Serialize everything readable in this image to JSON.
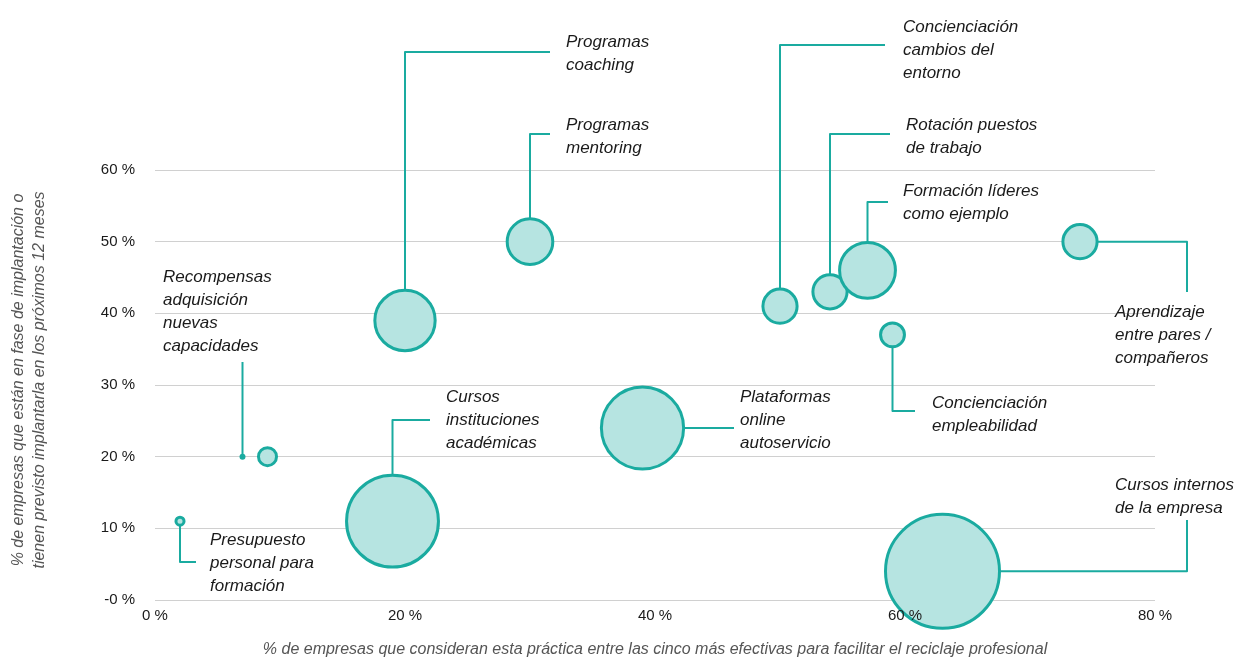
{
  "chart_data": {
    "type": "bubble",
    "xlabel": "% de empresas que consideran esta práctica entre las cinco más efectivas para facilitar el reciclaje profesional",
    "ylabel": "% de empresas que están en fase de implantación o tienen previsto implantarla en los próximos 12 meses",
    "x": [
      20,
      30,
      50,
      54,
      57,
      74,
      59,
      39,
      19,
      9,
      2,
      63
    ],
    "values": [
      39,
      50,
      41,
      43,
      46,
      50,
      37,
      24,
      11,
      20,
      11,
      4
    ],
    "sizes": [
      0.28,
      0.16,
      0.09,
      0.09,
      0.24,
      0.09,
      0.044,
      0.52,
      0.65,
      0.025,
      0.005,
      1
    ],
    "color": "#1aaba0",
    "xlim": [
      0,
      80
    ],
    "xticks": [
      {
        "value": 0,
        "label": "0 %"
      },
      {
        "value": 20,
        "label": "20 %"
      },
      {
        "value": 40,
        "label": "40 %"
      },
      {
        "value": 60,
        "label": "60 %"
      },
      {
        "value": 80,
        "label": "80 %"
      }
    ],
    "ylim": [
      0,
      60
    ],
    "yticks": [
      {
        "value": 0,
        "label": "-0 %"
      },
      {
        "value": 10,
        "label": "10 %"
      },
      {
        "value": 20,
        "label": "20 %"
      },
      {
        "value": 30,
        "label": "30 %"
      },
      {
        "value": 40,
        "label": "40 %"
      },
      {
        "value": 50,
        "label": "50 %"
      },
      {
        "value": 60,
        "label": "60 %"
      }
    ],
    "grid": "y",
    "legend": false,
    "annotations": [
      {
        "text": "Programas coaching",
        "x": 20,
        "y": 39
      },
      {
        "text": "Programas mentoring",
        "x": 30,
        "y": 50
      },
      {
        "text": "Concienciación cambios del entorno",
        "x": 50,
        "y": 41
      },
      {
        "text": "Rotación puestos de trabajo",
        "x": 54,
        "y": 43
      },
      {
        "text": "Formación líderes como ejemplo",
        "x": 57,
        "y": 46
      },
      {
        "text": "Aprendizaje entre pares / compañeros",
        "x": 74,
        "y": 50
      },
      {
        "text": "Concienciación empleabilidad",
        "x": 59,
        "y": 37
      },
      {
        "text": "Plataformas online autoservicio",
        "x": 39,
        "y": 24
      },
      {
        "text": "Cursos instituciones académicas",
        "x": 19,
        "y": 11
      },
      {
        "text": "Recompensas adquisición nuevas capacidades",
        "x": 7,
        "y": 20
      },
      {
        "text": "Presupuesto personal para formación",
        "x": 2,
        "y": 11
      },
      {
        "text": "Cursos internos de la empresa",
        "x": 63,
        "y": 4
      }
    ]
  }
}
